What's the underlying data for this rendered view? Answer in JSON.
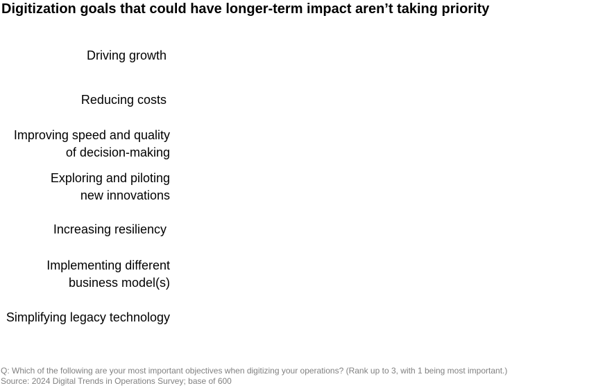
{
  "title": "Digitization goals that could have longer-term impact aren’t taking priority",
  "chart_data": {
    "type": "bar",
    "title": "Digitization goals that could have longer-term impact aren’t taking priority",
    "categories": [
      "Driving growth",
      "Reducing costs",
      "Improving speed and quality\nof decision-making",
      "Exploring and piloting\nnew innovations",
      "Increasing resiliency",
      "Implementing different\nbusiness model(s)",
      "Simplifying legacy technology"
    ]
  },
  "footnotes": {
    "question": "Q: Which of the following are your most important objectives when digitizing your operations? (Rank up to 3, with 1 being most important.)",
    "source": "Source: 2024 Digital Trends in Operations Survey; base of 600"
  }
}
